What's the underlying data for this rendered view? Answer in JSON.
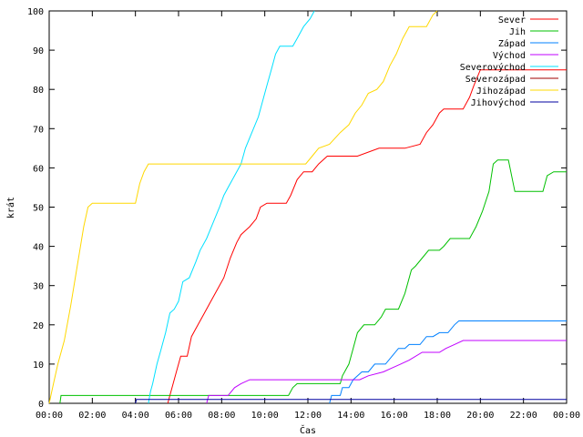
{
  "chart_data": {
    "type": "line",
    "title": "",
    "xlabel": "Čas",
    "ylabel": "krát",
    "xlim": [
      0,
      24
    ],
    "ylim": [
      0,
      100
    ],
    "x_ticks": [
      {
        "v": 0,
        "label": "00:00"
      },
      {
        "v": 2,
        "label": "02:00"
      },
      {
        "v": 4,
        "label": "04:00"
      },
      {
        "v": 6,
        "label": "06:00"
      },
      {
        "v": 8,
        "label": "08:00"
      },
      {
        "v": 10,
        "label": "10:00"
      },
      {
        "v": 12,
        "label": "12:00"
      },
      {
        "v": 14,
        "label": "14:00"
      },
      {
        "v": 16,
        "label": "16:00"
      },
      {
        "v": 18,
        "label": "18:00"
      },
      {
        "v": 20,
        "label": "20:00"
      },
      {
        "v": 22,
        "label": "22:00"
      },
      {
        "v": 24,
        "label": "00:00"
      }
    ],
    "y_ticks": [
      0,
      10,
      20,
      30,
      40,
      50,
      60,
      70,
      80,
      90,
      100
    ],
    "grid": false,
    "legend_position": "top-right",
    "series": [
      {
        "name": "Sever",
        "color": "#ff0000",
        "points": [
          [
            5.5,
            0
          ],
          [
            5.6,
            2
          ],
          [
            5.9,
            8
          ],
          [
            6.1,
            12
          ],
          [
            6.4,
            12
          ],
          [
            6.6,
            17
          ],
          [
            6.9,
            20
          ],
          [
            7.2,
            23
          ],
          [
            7.5,
            26
          ],
          [
            7.8,
            29
          ],
          [
            8.1,
            32
          ],
          [
            8.4,
            37
          ],
          [
            8.7,
            41
          ],
          [
            8.9,
            43
          ],
          [
            9.3,
            45
          ],
          [
            9.6,
            47
          ],
          [
            9.8,
            50
          ],
          [
            10.1,
            51
          ],
          [
            11.0,
            51
          ],
          [
            11.2,
            53
          ],
          [
            11.5,
            57
          ],
          [
            11.8,
            59
          ],
          [
            12.2,
            59
          ],
          [
            12.5,
            61
          ],
          [
            12.9,
            63
          ],
          [
            13.5,
            63
          ],
          [
            14.3,
            63
          ],
          [
            15.3,
            65
          ],
          [
            16.5,
            65
          ],
          [
            17.2,
            66
          ],
          [
            17.5,
            69
          ],
          [
            17.8,
            71
          ],
          [
            18.1,
            74
          ],
          [
            18.3,
            75
          ],
          [
            19.2,
            75
          ],
          [
            19.5,
            78
          ],
          [
            19.7,
            81
          ],
          [
            20.0,
            85
          ],
          [
            21.0,
            85
          ],
          [
            24.0,
            85
          ]
        ]
      },
      {
        "name": "Jih",
        "color": "#00c000",
        "points": [
          [
            0.5,
            0
          ],
          [
            0.55,
            2
          ],
          [
            11.1,
            2
          ],
          [
            11.3,
            4
          ],
          [
            11.5,
            5
          ],
          [
            13.5,
            5
          ],
          [
            13.6,
            7
          ],
          [
            13.9,
            10
          ],
          [
            14.1,
            14
          ],
          [
            14.3,
            18
          ],
          [
            14.6,
            20
          ],
          [
            15.1,
            20
          ],
          [
            15.4,
            22
          ],
          [
            15.6,
            24
          ],
          [
            16.2,
            24
          ],
          [
            16.5,
            28
          ],
          [
            16.8,
            34
          ],
          [
            17.0,
            35
          ],
          [
            17.3,
            37
          ],
          [
            17.6,
            39
          ],
          [
            18.1,
            39
          ],
          [
            18.3,
            40
          ],
          [
            18.6,
            42
          ],
          [
            19.5,
            42
          ],
          [
            19.8,
            45
          ],
          [
            20.1,
            49
          ],
          [
            20.4,
            54
          ],
          [
            20.6,
            61
          ],
          [
            20.8,
            62
          ],
          [
            21.3,
            62
          ],
          [
            21.6,
            54
          ],
          [
            22.9,
            54
          ],
          [
            23.1,
            58
          ],
          [
            23.4,
            59
          ],
          [
            24.0,
            59
          ]
        ]
      },
      {
        "name": "Západ",
        "color": "#0080ff",
        "points": [
          [
            13.0,
            0
          ],
          [
            13.1,
            2
          ],
          [
            13.5,
            2
          ],
          [
            13.6,
            4
          ],
          [
            13.9,
            4
          ],
          [
            14.1,
            6
          ],
          [
            14.5,
            8
          ],
          [
            14.8,
            8
          ],
          [
            15.1,
            10
          ],
          [
            15.6,
            10
          ],
          [
            15.9,
            12
          ],
          [
            16.2,
            14
          ],
          [
            16.5,
            14
          ],
          [
            16.7,
            15
          ],
          [
            17.2,
            15
          ],
          [
            17.5,
            17
          ],
          [
            17.8,
            17
          ],
          [
            18.1,
            18
          ],
          [
            18.5,
            18
          ],
          [
            18.8,
            20
          ],
          [
            19.0,
            21
          ],
          [
            24.0,
            21
          ]
        ]
      },
      {
        "name": "Východ",
        "color": "#c000ff",
        "points": [
          [
            7.3,
            0
          ],
          [
            7.4,
            2
          ],
          [
            8.3,
            2
          ],
          [
            8.6,
            4
          ],
          [
            8.9,
            5
          ],
          [
            9.3,
            6
          ],
          [
            13.8,
            6
          ],
          [
            14.4,
            6
          ],
          [
            14.8,
            7
          ],
          [
            15.5,
            8
          ],
          [
            15.9,
            9
          ],
          [
            16.3,
            10
          ],
          [
            16.7,
            11
          ],
          [
            17.3,
            13
          ],
          [
            18.1,
            13
          ],
          [
            18.4,
            14
          ],
          [
            18.8,
            15
          ],
          [
            19.2,
            16
          ],
          [
            24.0,
            16
          ]
        ]
      },
      {
        "name": "Severovýchod",
        "color": "#00e0ff",
        "points": [
          [
            4.6,
            0
          ],
          [
            4.7,
            3
          ],
          [
            4.8,
            5
          ],
          [
            5.0,
            10
          ],
          [
            5.2,
            14
          ],
          [
            5.4,
            18
          ],
          [
            5.6,
            23
          ],
          [
            5.8,
            24
          ],
          [
            6.0,
            26
          ],
          [
            6.2,
            31
          ],
          [
            6.5,
            32
          ],
          [
            6.8,
            36
          ],
          [
            7.0,
            39
          ],
          [
            7.3,
            42
          ],
          [
            7.6,
            46
          ],
          [
            7.9,
            50
          ],
          [
            8.1,
            53
          ],
          [
            8.3,
            55
          ],
          [
            8.6,
            58
          ],
          [
            8.9,
            61
          ],
          [
            9.1,
            65
          ],
          [
            9.4,
            69
          ],
          [
            9.7,
            73
          ],
          [
            9.9,
            77
          ],
          [
            10.1,
            81
          ],
          [
            10.3,
            85
          ],
          [
            10.5,
            89
          ],
          [
            10.7,
            91
          ],
          [
            11.3,
            91
          ],
          [
            11.5,
            93
          ],
          [
            11.8,
            96
          ],
          [
            12.1,
            98
          ],
          [
            12.3,
            100
          ]
        ]
      },
      {
        "name": "Severozápad",
        "color": "#a00000",
        "points": []
      },
      {
        "name": "Jihozápad",
        "color": "#ffd800",
        "points": [
          [
            0.0,
            0
          ],
          [
            0.2,
            5
          ],
          [
            0.4,
            10
          ],
          [
            0.7,
            16
          ],
          [
            1.0,
            25
          ],
          [
            1.3,
            35
          ],
          [
            1.6,
            45
          ],
          [
            1.8,
            50
          ],
          [
            2.0,
            51
          ],
          [
            4.0,
            51
          ],
          [
            4.2,
            56
          ],
          [
            4.4,
            59
          ],
          [
            4.6,
            61
          ],
          [
            11.6,
            61
          ],
          [
            11.9,
            61
          ],
          [
            12.2,
            63
          ],
          [
            12.5,
            65
          ],
          [
            13.0,
            66
          ],
          [
            13.5,
            69
          ],
          [
            13.9,
            71
          ],
          [
            14.2,
            74
          ],
          [
            14.5,
            76
          ],
          [
            14.8,
            79
          ],
          [
            15.2,
            80
          ],
          [
            15.5,
            82
          ],
          [
            15.8,
            86
          ],
          [
            16.1,
            89
          ],
          [
            16.4,
            93
          ],
          [
            16.7,
            96
          ],
          [
            17.5,
            96
          ],
          [
            17.8,
            99
          ],
          [
            18.0,
            100
          ]
        ]
      },
      {
        "name": "Jihovýchod",
        "color": "#0000a0",
        "points": [
          [
            4.0,
            0
          ],
          [
            4.05,
            1
          ],
          [
            10.6,
            1
          ],
          [
            24.0,
            1
          ]
        ]
      }
    ]
  }
}
